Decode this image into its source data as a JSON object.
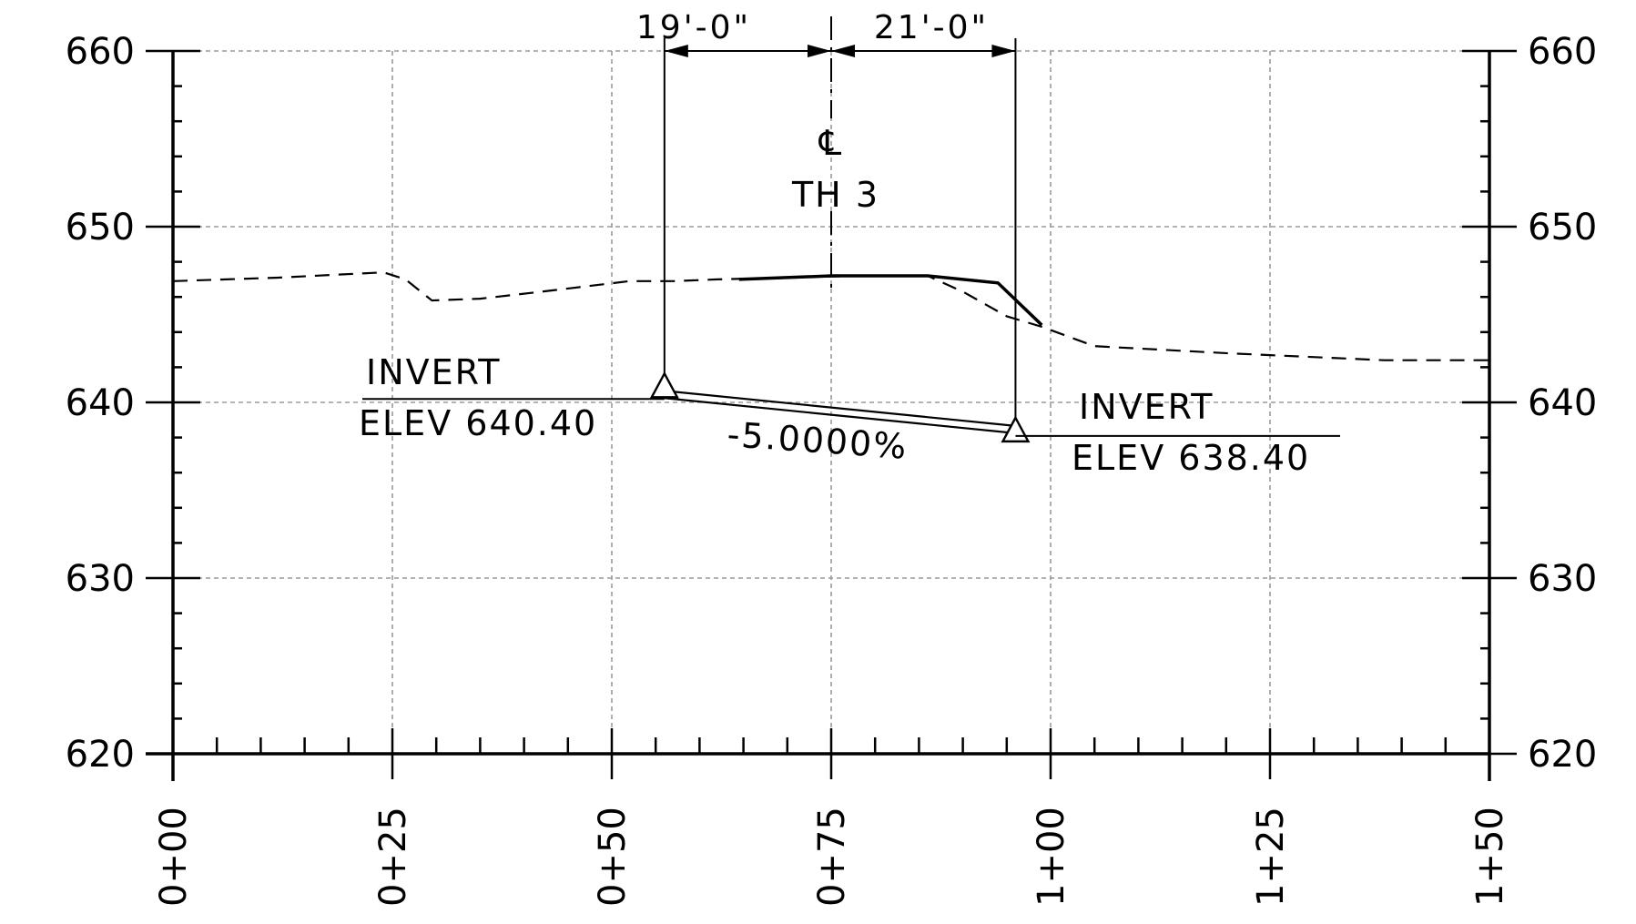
{
  "chart_data": {
    "type": "line",
    "title": "",
    "xlabel": "",
    "ylabel": "",
    "x_unit": "ft",
    "xlim": [
      0,
      150
    ],
    "ylim": [
      620,
      660
    ],
    "x_tick_values": [
      0,
      25,
      50,
      75,
      100,
      125,
      150
    ],
    "x_tick_labels": [
      "0+00",
      "0+25",
      "0+50",
      "0+75",
      "1+00",
      "1+25",
      "1+50"
    ],
    "y_tick_values": [
      620,
      630,
      640,
      650,
      660
    ],
    "y_tick_labels": [
      "620",
      "630",
      "640",
      "650",
      "660"
    ],
    "grid": true,
    "series": [
      {
        "style": "dashed",
        "role": "existing ground",
        "x": [
          0,
          12,
          24,
          26.5,
          29.5,
          35,
          42,
          52,
          57,
          62,
          70,
          78,
          86,
          90,
          95,
          99,
          105,
          120,
          138,
          150
        ],
        "y": [
          646.9,
          647.1,
          647.4,
          647.0,
          645.8,
          645.9,
          646.3,
          646.9,
          646.9,
          647.0,
          647.1,
          647.2,
          647.2,
          646.3,
          644.9,
          644.3,
          643.2,
          642.8,
          642.4,
          642.4
        ]
      },
      {
        "style": "solid",
        "role": "proposed road",
        "x": [
          64.5,
          75,
          86,
          94,
          99
        ],
        "y": [
          647.0,
          647.2,
          647.2,
          646.8,
          644.4
        ]
      },
      {
        "style": "double",
        "role": "culvert",
        "x": [
          56,
          96
        ],
        "y": [
          640.4,
          638.4
        ]
      }
    ],
    "centerline_x": 75,
    "invert_points": [
      {
        "x": 56,
        "y": 640.4,
        "line1": "INVERT",
        "line2": "ELEV 640.40"
      },
      {
        "x": 96,
        "y": 638.4,
        "line1": "INVERT",
        "line2": "ELEV 638.40"
      }
    ],
    "dimensions": [
      {
        "from": 56,
        "to": 75,
        "label": "19'-0\""
      },
      {
        "from": 75,
        "to": 96,
        "label": "21'-0\""
      }
    ],
    "annotations": {
      "centerline_symbol": "℄",
      "centerline_name": "TH 3",
      "slope": "-5.0000%"
    }
  }
}
